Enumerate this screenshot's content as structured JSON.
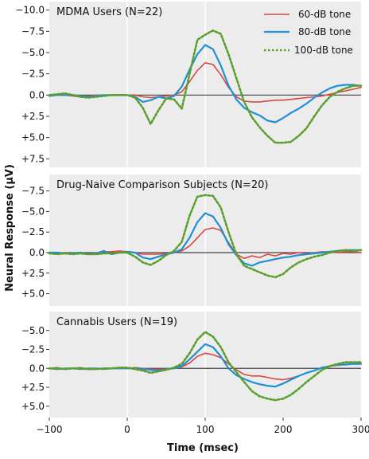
{
  "chart_data": {
    "type": "line",
    "xlabel": "Time (msec)",
    "ylabel": "Neural Response (µV)",
    "xlim": [
      -100,
      300
    ],
    "x_ticks": [
      "−100",
      "0",
      "100",
      "200",
      "300"
    ],
    "y_axis_inverted": true,
    "grid": "vertical lines at x = 0 and x = 100",
    "legend": {
      "placement": "top-right of first panel",
      "entries": [
        "60-dB tone",
        "80-dB tone",
        "100-dB tone"
      ]
    },
    "series_styles": [
      {
        "name": "60-dB tone",
        "color": "#d9473f",
        "dash": "solid"
      },
      {
        "name": "80-dB tone",
        "color": "#1f8fd6",
        "dash": "solid"
      },
      {
        "name": "100-dB tone",
        "color": "#5a9e2c",
        "dash": "dotted"
      }
    ],
    "x": [
      -100,
      -90,
      -80,
      -70,
      -60,
      -50,
      -40,
      -30,
      -20,
      -10,
      0,
      10,
      20,
      30,
      40,
      50,
      60,
      70,
      80,
      90,
      100,
      110,
      120,
      130,
      140,
      150,
      160,
      170,
      180,
      190,
      200,
      210,
      220,
      230,
      240,
      250,
      260,
      270,
      280,
      290,
      300
    ],
    "panels": [
      {
        "title": "MDMA Users (N=22)",
        "ylim": [
          -11,
          8.5
        ],
        "y_ticks": [
          {
            "value": -10,
            "label": "−10.0"
          },
          {
            "value": -7.5,
            "label": "−7.5"
          },
          {
            "value": -5,
            "label": "−5.0"
          },
          {
            "value": -2.5,
            "label": "−2.5"
          },
          {
            "value": 0,
            "label": "0.0"
          },
          {
            "value": 2.5,
            "label": "+2.5"
          },
          {
            "value": 5,
            "label": "+5.0"
          },
          {
            "value": 7.5,
            "label": "+7.5"
          }
        ],
        "series": [
          {
            "name": "60-dB tone",
            "values": [
              0.1,
              0,
              0,
              0.1,
              0.2,
              0.1,
              0,
              0,
              0,
              0,
              0,
              0,
              0.2,
              0.3,
              0.2,
              0.1,
              0,
              -0.4,
              -1.6,
              -2.9,
              -3.8,
              -3.6,
              -2.4,
              -0.9,
              0.2,
              0.7,
              0.8,
              0.8,
              0.7,
              0.6,
              0.6,
              0.5,
              0.4,
              0.3,
              0.2,
              0.1,
              -0.1,
              -0.3,
              -0.5,
              -0.7,
              -0.9
            ]
          },
          {
            "name": "80-dB tone",
            "values": [
              0.1,
              0,
              0,
              0,
              0.1,
              0.2,
              0.1,
              0,
              0,
              0,
              0,
              0.2,
              0.8,
              0.6,
              0.2,
              0.4,
              0.1,
              -1.0,
              -3.0,
              -4.8,
              -5.9,
              -5.4,
              -3.5,
              -1.1,
              0.5,
              1.5,
              2.0,
              2.4,
              3.0,
              3.2,
              2.7,
              2.1,
              1.6,
              1.0,
              0.3,
              -0.3,
              -0.8,
              -1.1,
              -1.2,
              -1.2,
              -1.1
            ]
          },
          {
            "name": "100-dB tone",
            "values": [
              0,
              -0.1,
              -0.2,
              0,
              0.2,
              0.3,
              0.2,
              0.1,
              0,
              0,
              0,
              0.3,
              1.5,
              3.4,
              1.8,
              0.4,
              0.5,
              1.6,
              -2.5,
              -6.5,
              -7.1,
              -7.6,
              -7.2,
              -4.8,
              -2.0,
              0.8,
              2.6,
              3.8,
              4.8,
              5.6,
              5.6,
              5.5,
              4.8,
              3.9,
              2.5,
              1.2,
              0.2,
              -0.4,
              -0.8,
              -1.1,
              -1.1
            ]
          }
        ]
      },
      {
        "title": "Drug-Naive Comparison Subjects (N=20)",
        "ylim": [
          -9.5,
          6.5
        ],
        "y_ticks": [
          {
            "value": -7.5,
            "label": "−7.5"
          },
          {
            "value": -5,
            "label": "−5.0"
          },
          {
            "value": -2.5,
            "label": "−2.5"
          },
          {
            "value": 0,
            "label": "0.0"
          },
          {
            "value": 2.5,
            "label": "+2.5"
          },
          {
            "value": 5,
            "label": "+5.0"
          }
        ],
        "series": [
          {
            "name": "60-dB tone",
            "values": [
              0,
              0.1,
              0,
              0.1,
              0.1,
              0.2,
              0,
              -0.1,
              -0.1,
              -0.2,
              -0.1,
              0,
              0.2,
              0.2,
              0.2,
              0.1,
              0,
              -0.2,
              -0.8,
              -1.8,
              -2.8,
              -3.0,
              -2.7,
              -1.2,
              0.2,
              0.7,
              0.4,
              0.6,
              0.2,
              0.4,
              0.1,
              0.2,
              0,
              0.1,
              0,
              -0.1,
              -0.1,
              0,
              -0.1,
              -0.1,
              0
            ]
          },
          {
            "name": "80-dB tone",
            "values": [
              0,
              0,
              0.1,
              0.1,
              0,
              0.2,
              0.1,
              -0.2,
              0.2,
              0,
              -0.1,
              0,
              0.6,
              0.8,
              0.5,
              0.2,
              0,
              -0.4,
              -1.8,
              -3.7,
              -4.8,
              -4.4,
              -3.0,
              -1.0,
              0.3,
              1.3,
              1.6,
              1.2,
              1.0,
              0.8,
              0.6,
              0.5,
              0.3,
              0.2,
              0.1,
              0,
              -0.1,
              -0.2,
              -0.3,
              -0.3,
              -0.3
            ]
          },
          {
            "name": "100-dB tone",
            "values": [
              0.1,
              0.2,
              0.1,
              0.2,
              0.1,
              0.2,
              0.2,
              0.1,
              0.1,
              0,
              0,
              0.5,
              1.2,
              1.5,
              1.0,
              0.3,
              -0.2,
              -1.3,
              -4.5,
              -6.8,
              -7.0,
              -6.9,
              -5.5,
              -2.5,
              0.2,
              1.6,
              2.0,
              2.4,
              2.8,
              3.0,
              2.6,
              1.8,
              1.2,
              0.8,
              0.5,
              0.3,
              0,
              -0.2,
              -0.3,
              -0.2,
              -0.3
            ]
          }
        ]
      },
      {
        "title": "Cannabis Users (N=19)",
        "ylim": [
          -7.5,
          6.5
        ],
        "y_ticks": [
          {
            "value": -5,
            "label": "−5.0"
          },
          {
            "value": -2.5,
            "label": "−2.5"
          },
          {
            "value": 0,
            "label": "0.0"
          },
          {
            "value": 2.5,
            "label": "+2.5"
          },
          {
            "value": 5,
            "label": "+5.0"
          }
        ],
        "series": [
          {
            "name": "60-dB tone",
            "values": [
              0,
              -0.1,
              0.1,
              0,
              -0.1,
              0.1,
              0,
              0,
              0,
              -0.1,
              0,
              -0.1,
              0,
              0.1,
              0.1,
              0.1,
              0,
              -0.2,
              -0.7,
              -1.6,
              -2.0,
              -1.8,
              -1.4,
              -0.6,
              0.2,
              0.8,
              1.0,
              1.0,
              1.2,
              1.4,
              1.5,
              1.3,
              1.0,
              0.6,
              0.3,
              -0.1,
              -0.3,
              -0.4,
              -0.5,
              -0.6,
              -0.8
            ]
          },
          {
            "name": "80-dB tone",
            "values": [
              0,
              0.1,
              0,
              0,
              0.1,
              0,
              0,
              0.1,
              0,
              0,
              0,
              0,
              0.1,
              0.2,
              0.3,
              0.1,
              0,
              -0.3,
              -1.2,
              -2.2,
              -3.2,
              -2.8,
              -1.6,
              0,
              0.9,
              1.4,
              1.8,
              2.1,
              2.3,
              2.4,
              2.0,
              1.5,
              1.0,
              0.6,
              0.3,
              -0.1,
              -0.3,
              -0.5,
              -0.5,
              -0.6,
              -0.6
            ]
          },
          {
            "name": "100-dB tone",
            "values": [
              0,
              0,
              0.1,
              0,
              0,
              0.1,
              0.1,
              0,
              0,
              -0.1,
              -0.1,
              0.1,
              0.3,
              0.6,
              0.4,
              0.2,
              -0.1,
              -0.6,
              -2.0,
              -3.8,
              -4.8,
              -4.2,
              -2.8,
              -0.8,
              0.5,
              1.8,
              3.0,
              3.7,
              4.0,
              4.2,
              4.0,
              3.5,
              2.7,
              1.8,
              1.0,
              0.2,
              -0.3,
              -0.6,
              -0.8,
              -0.8,
              -0.8
            ]
          }
        ]
      }
    ]
  }
}
